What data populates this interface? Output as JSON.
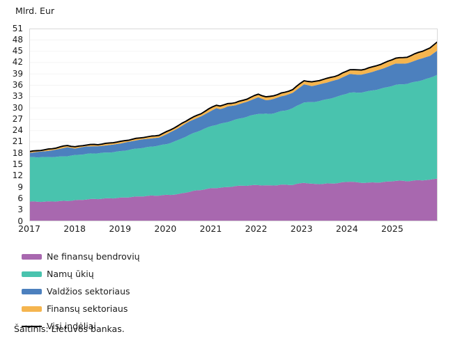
{
  "figure": {
    "unit_label": "Mlrd. Eur",
    "source": "Šaltinis: Lietuvos bankas."
  },
  "legend": {
    "items": [
      {
        "label": "Ne finansų bendrovių",
        "color": "#a868af",
        "type": "area"
      },
      {
        "label": "Namų ūkių",
        "color": "#49c3ae",
        "type": "area"
      },
      {
        "label": "Valdžios sektoriaus",
        "color": "#4c80be",
        "type": "area"
      },
      {
        "label": "Finansų sektoriaus",
        "color": "#f5b54f",
        "type": "area"
      },
      {
        "label": "Visi indėliai",
        "color": "#000000",
        "type": "line"
      }
    ]
  },
  "chart_data": {
    "type": "area",
    "stacked": true,
    "title": "",
    "unit_label": "Mlrd. Eur",
    "xlabel": "",
    "ylabel": "Mlrd. Eur",
    "x_range": [
      2017,
      2026
    ],
    "x_tick_years": [
      "2017",
      "2018",
      "2019",
      "2020",
      "2021",
      "2022",
      "2023",
      "2024",
      "2025"
    ],
    "ylim": [
      0,
      51
    ],
    "ytick_step": 3,
    "grid": "horizontal",
    "legend_position": "bottom-left",
    "frequency": "monthly",
    "series": [
      {
        "name": "Ne finansų bendrovių",
        "color": "#a868af",
        "points": [
          [
            2017.0,
            5.2
          ],
          [
            2017.33,
            5.15
          ],
          [
            2017.67,
            5.35
          ],
          [
            2018.0,
            5.6
          ],
          [
            2018.5,
            5.9
          ],
          [
            2019.0,
            6.3
          ],
          [
            2019.5,
            6.6
          ],
          [
            2020.0,
            7.0
          ],
          [
            2020.25,
            7.2
          ],
          [
            2020.5,
            7.8
          ],
          [
            2020.75,
            8.3
          ],
          [
            2021.0,
            8.8
          ],
          [
            2021.25,
            9.0
          ],
          [
            2021.5,
            9.3
          ],
          [
            2021.75,
            9.4
          ],
          [
            2022.0,
            9.6
          ],
          [
            2022.25,
            9.5
          ],
          [
            2022.5,
            9.7
          ],
          [
            2022.75,
            9.6
          ],
          [
            2023.0,
            10.2
          ],
          [
            2023.17,
            9.9
          ],
          [
            2023.5,
            10.0
          ],
          [
            2023.75,
            10.1
          ],
          [
            2024.0,
            10.5
          ],
          [
            2024.2,
            10.2
          ],
          [
            2024.5,
            10.3
          ],
          [
            2024.75,
            10.4
          ],
          [
            2025.0,
            10.7
          ],
          [
            2025.25,
            10.6
          ],
          [
            2025.5,
            10.9
          ],
          [
            2025.75,
            11.0
          ],
          [
            2025.92,
            11.4
          ]
        ]
      },
      {
        "name": "Namų ūkių",
        "color": "#49c3ae",
        "points": [
          [
            2017.0,
            11.7
          ],
          [
            2017.5,
            11.8
          ],
          [
            2018.0,
            11.9
          ],
          [
            2018.5,
            12.1
          ],
          [
            2019.0,
            12.3
          ],
          [
            2019.5,
            12.8
          ],
          [
            2020.0,
            13.5
          ],
          [
            2020.5,
            15.0
          ],
          [
            2021.0,
            16.6
          ],
          [
            2021.5,
            17.5
          ],
          [
            2022.0,
            18.9
          ],
          [
            2022.3,
            19.0
          ],
          [
            2022.6,
            19.6
          ],
          [
            2023.0,
            21.3
          ],
          [
            2023.5,
            22.3
          ],
          [
            2024.0,
            23.5
          ],
          [
            2024.5,
            24.4
          ],
          [
            2025.0,
            25.3
          ],
          [
            2025.5,
            26.3
          ],
          [
            2025.92,
            27.4
          ]
        ]
      },
      {
        "name": "Valdžios sektoriaus",
        "color": "#4c80be",
        "points": [
          [
            2017.0,
            1.1
          ],
          [
            2017.25,
            1.5
          ],
          [
            2017.5,
            1.8
          ],
          [
            2017.83,
            2.3
          ],
          [
            2018.0,
            1.7
          ],
          [
            2018.25,
            2.0
          ],
          [
            2018.5,
            1.9
          ],
          [
            2019.0,
            2.0
          ],
          [
            2019.5,
            2.3
          ],
          [
            2019.83,
            2.1
          ],
          [
            2020.0,
            2.6
          ],
          [
            2020.33,
            3.3
          ],
          [
            2020.5,
            3.6
          ],
          [
            2020.75,
            3.7
          ],
          [
            2021.0,
            4.1
          ],
          [
            2021.08,
            4.4
          ],
          [
            2021.2,
            3.7
          ],
          [
            2021.3,
            4.1
          ],
          [
            2021.5,
            3.8
          ],
          [
            2021.75,
            4.0
          ],
          [
            2022.0,
            4.4
          ],
          [
            2022.17,
            3.6
          ],
          [
            2022.5,
            3.9
          ],
          [
            2022.75,
            4.1
          ],
          [
            2023.0,
            4.8
          ],
          [
            2023.17,
            4.3
          ],
          [
            2023.5,
            4.4
          ],
          [
            2023.75,
            4.5
          ],
          [
            2024.0,
            5.0
          ],
          [
            2024.25,
            4.7
          ],
          [
            2024.5,
            4.9
          ],
          [
            2024.75,
            5.2
          ],
          [
            2025.0,
            5.7
          ],
          [
            2025.2,
            5.4
          ],
          [
            2025.5,
            5.7
          ],
          [
            2025.75,
            5.8
          ],
          [
            2025.92,
            6.4
          ]
        ]
      },
      {
        "name": "Finansų sektoriaus",
        "color": "#f5b54f",
        "points": [
          [
            2017.0,
            0.4
          ],
          [
            2018.0,
            0.45
          ],
          [
            2019.0,
            0.5
          ],
          [
            2020.0,
            0.6
          ],
          [
            2020.5,
            0.7
          ],
          [
            2021.0,
            0.8
          ],
          [
            2021.5,
            0.75
          ],
          [
            2022.0,
            0.8
          ],
          [
            2022.5,
            0.85
          ],
          [
            2023.0,
            1.0
          ],
          [
            2023.5,
            1.05
          ],
          [
            2024.0,
            1.2
          ],
          [
            2024.5,
            1.25
          ],
          [
            2025.0,
            1.5
          ],
          [
            2025.5,
            1.8
          ],
          [
            2025.75,
            2.0
          ],
          [
            2025.92,
            2.4
          ]
        ]
      }
    ],
    "total_line": {
      "name": "Visi indėliai",
      "color": "#000000",
      "description": "sum of all stacked series"
    },
    "totals_reference": {
      "2017": 18.4,
      "2018": 19.7,
      "2019": 21.1,
      "2020": 23.7,
      "2021": 30.3,
      "2022": 33.7,
      "2023": 37.3,
      "2024": 40.2,
      "2025": 43.2,
      "end_2025": 47.6
    },
    "source": "Šaltinis: Lietuvos bankas.",
    "colors": {
      "grid": "#f4f4f4",
      "border": "#d9d9d9",
      "background": "#ffffff"
    }
  }
}
